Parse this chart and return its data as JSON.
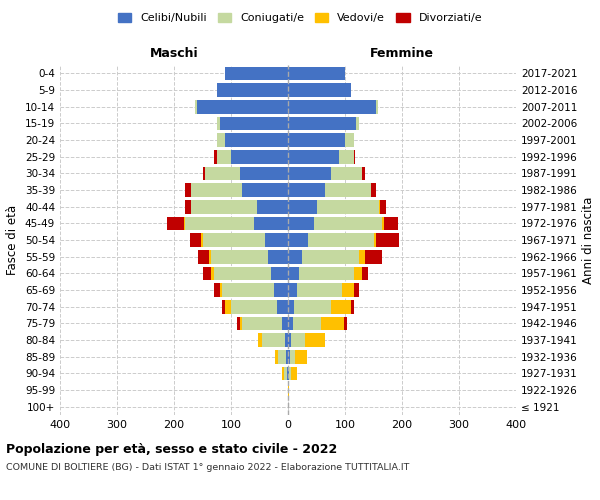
{
  "age_groups": [
    "100+",
    "95-99",
    "90-94",
    "85-89",
    "80-84",
    "75-79",
    "70-74",
    "65-69",
    "60-64",
    "55-59",
    "50-54",
    "45-49",
    "40-44",
    "35-39",
    "30-34",
    "25-29",
    "20-24",
    "15-19",
    "10-14",
    "5-9",
    "0-4"
  ],
  "birth_years": [
    "≤ 1921",
    "1922-1926",
    "1927-1931",
    "1932-1936",
    "1937-1941",
    "1942-1946",
    "1947-1951",
    "1952-1956",
    "1957-1961",
    "1962-1966",
    "1967-1971",
    "1972-1976",
    "1977-1981",
    "1982-1986",
    "1987-1991",
    "1992-1996",
    "1997-2001",
    "2002-2006",
    "2007-2011",
    "2012-2016",
    "2017-2021"
  ],
  "maschi": {
    "celibi": [
      0,
      0,
      2,
      3,
      5,
      10,
      20,
      25,
      30,
      35,
      40,
      60,
      55,
      80,
      85,
      100,
      110,
      120,
      160,
      125,
      110
    ],
    "coniugati": [
      0,
      0,
      5,
      15,
      40,
      70,
      80,
      90,
      100,
      100,
      110,
      120,
      115,
      90,
      60,
      25,
      15,
      5,
      3,
      0,
      0
    ],
    "vedovi": [
      0,
      0,
      3,
      5,
      8,
      5,
      10,
      5,
      5,
      3,
      2,
      2,
      1,
      1,
      0,
      0,
      0,
      0,
      0,
      0,
      0
    ],
    "divorziati": [
      0,
      0,
      0,
      0,
      0,
      5,
      5,
      10,
      15,
      20,
      20,
      30,
      10,
      10,
      5,
      5,
      0,
      0,
      0,
      0,
      0
    ]
  },
  "femmine": {
    "nubili": [
      0,
      0,
      2,
      3,
      5,
      8,
      10,
      15,
      20,
      25,
      35,
      45,
      50,
      65,
      75,
      90,
      100,
      120,
      155,
      110,
      100
    ],
    "coniugate": [
      0,
      0,
      3,
      10,
      25,
      50,
      65,
      80,
      95,
      100,
      115,
      120,
      110,
      80,
      55,
      25,
      15,
      5,
      3,
      0,
      0
    ],
    "vedove": [
      0,
      2,
      10,
      20,
      35,
      40,
      35,
      20,
      15,
      10,
      5,
      3,
      2,
      1,
      0,
      0,
      0,
      0,
      0,
      0,
      0
    ],
    "divorziate": [
      0,
      0,
      0,
      0,
      0,
      5,
      5,
      10,
      10,
      30,
      40,
      25,
      10,
      8,
      5,
      3,
      0,
      0,
      0,
      0,
      0
    ]
  },
  "colors": {
    "celibi": "#4472c4",
    "coniugati": "#c5d9a0",
    "vedovi": "#ffc000",
    "divorziati": "#c00000"
  },
  "xlim": 400,
  "title": "Popolazione per età, sesso e stato civile - 2022",
  "subtitle": "COMUNE DI BOLTIERE (BG) - Dati ISTAT 1° gennaio 2022 - Elaborazione TUTTITALIA.IT",
  "ylabel_left": "Fasce di età",
  "ylabel_right": "Anni di nascita",
  "xlabel_left": "Maschi",
  "xlabel_right": "Femmine",
  "legend_labels": [
    "Celibi/Nubili",
    "Coniugati/e",
    "Vedovi/e",
    "Divorziati/e"
  ],
  "background_color": "#ffffff",
  "grid_color": "#cccccc"
}
